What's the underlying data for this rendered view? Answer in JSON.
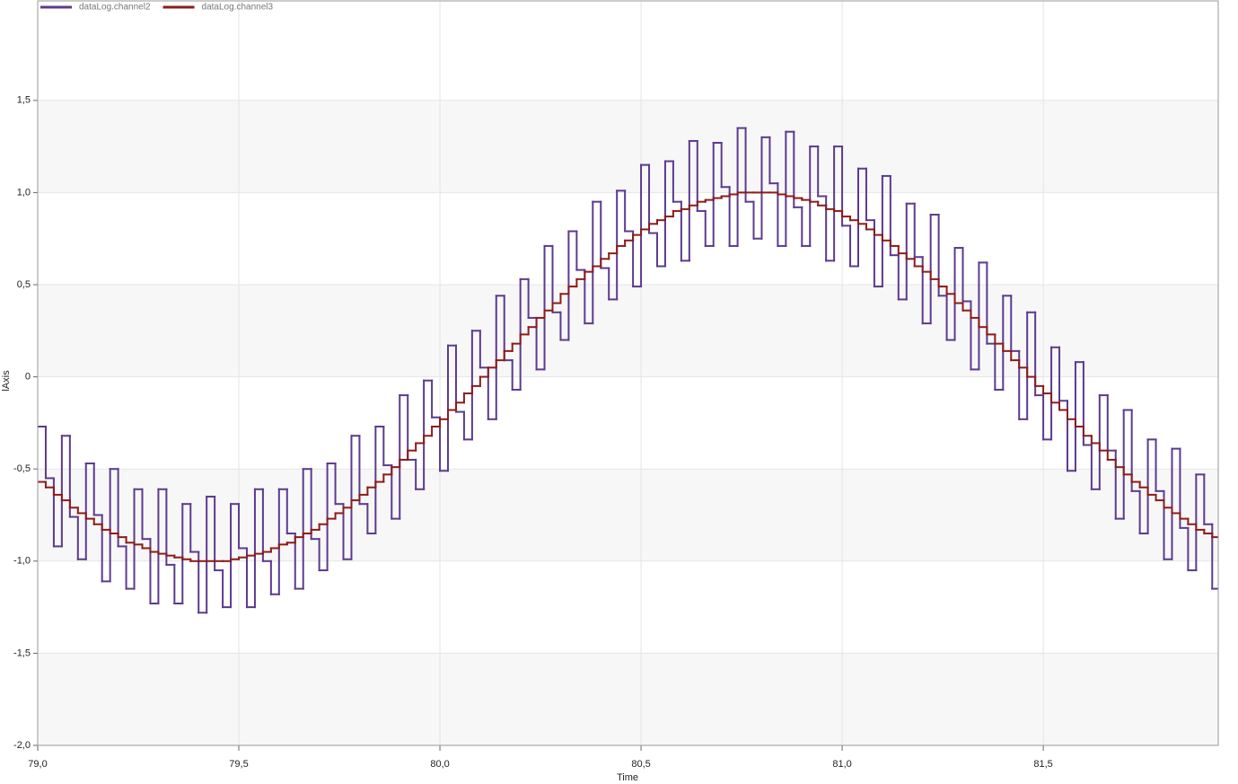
{
  "chart_data": {
    "type": "step-line",
    "x_label": "Time",
    "y_label": "lAxis",
    "xlim": [
      79.0,
      81.935
    ],
    "ylim": [
      -2.0,
      2.04
    ],
    "xticks": [
      {
        "value": 79.0,
        "label": "79,0"
      },
      {
        "value": 79.5,
        "label": "79,5"
      },
      {
        "value": 80.0,
        "label": "80,0"
      },
      {
        "value": 80.5,
        "label": "80,5"
      },
      {
        "value": 81.0,
        "label": "81,0"
      },
      {
        "value": 81.5,
        "label": "81,5"
      }
    ],
    "yticks": [
      {
        "value": -2.0,
        "label": "-2,0"
      },
      {
        "value": -1.5,
        "label": "-1,5"
      },
      {
        "value": -1.0,
        "label": "-1,0"
      },
      {
        "value": -0.5,
        "label": "-0,5"
      },
      0,
      {
        "value": 0.5,
        "label": "0,5"
      },
      {
        "value": 1.0,
        "label": "1,0"
      },
      {
        "value": 1.5,
        "label": "1,5"
      }
    ],
    "grid": true,
    "legend": "top-left",
    "x": [
      79.0,
      79.02,
      79.04,
      79.06,
      79.08,
      79.1,
      79.12,
      79.14,
      79.16,
      79.18,
      79.2,
      79.22,
      79.24,
      79.26,
      79.28,
      79.3,
      79.32,
      79.34,
      79.36,
      79.38,
      79.4,
      79.42,
      79.44,
      79.46,
      79.48,
      79.5,
      79.52,
      79.54,
      79.56,
      79.58,
      79.6,
      79.62,
      79.64,
      79.66,
      79.68,
      79.7,
      79.72,
      79.74,
      79.76,
      79.78,
      79.8,
      79.82,
      79.84,
      79.86,
      79.88,
      79.9,
      79.92,
      79.94,
      79.96,
      79.98,
      80.0,
      80.02,
      80.04,
      80.06,
      80.08,
      80.1,
      80.12,
      80.14,
      80.16,
      80.18,
      80.2,
      80.22,
      80.24,
      80.26,
      80.28,
      80.3,
      80.32,
      80.34,
      80.36,
      80.38,
      80.4,
      80.42,
      80.44,
      80.46,
      80.48,
      80.5,
      80.52,
      80.54,
      80.56,
      80.58,
      80.6,
      80.62,
      80.64,
      80.66,
      80.68,
      80.7,
      80.72,
      80.74,
      80.76,
      80.78,
      80.8,
      80.82,
      80.84,
      80.86,
      80.88,
      80.9,
      80.92,
      80.94,
      80.96,
      80.98,
      81.0,
      81.02,
      81.04,
      81.06,
      81.08,
      81.1,
      81.12,
      81.14,
      81.16,
      81.18,
      81.2,
      81.22,
      81.24,
      81.26,
      81.28,
      81.3,
      81.32,
      81.34,
      81.36,
      81.38,
      81.4,
      81.42,
      81.44,
      81.46,
      81.48,
      81.5,
      81.52,
      81.54,
      81.56,
      81.58,
      81.6,
      81.62,
      81.64,
      81.66,
      81.68,
      81.7,
      81.72,
      81.74,
      81.76,
      81.78,
      81.8,
      81.82,
      81.84,
      81.86,
      81.88,
      81.9,
      81.92
    ],
    "series": [
      {
        "name": "dataLog.channel2",
        "color": "#5c3a8e",
        "values": [
          -0.27,
          -0.55,
          -0.92,
          -0.32,
          -0.76,
          -0.99,
          -0.47,
          -0.75,
          -1.11,
          -0.5,
          -0.92,
          -1.15,
          -0.61,
          -0.88,
          -1.23,
          -0.61,
          -1.02,
          -1.23,
          -0.69,
          -0.95,
          -1.28,
          -0.65,
          -1.05,
          -1.25,
          -0.69,
          -0.93,
          -1.25,
          -0.61,
          -1.0,
          -1.18,
          -0.61,
          -0.85,
          -1.15,
          -0.5,
          -0.88,
          -1.05,
          -0.47,
          -0.69,
          -0.99,
          -0.32,
          -0.69,
          -0.85,
          -0.27,
          -0.48,
          -0.77,
          -0.1,
          -0.45,
          -0.61,
          -0.02,
          -0.22,
          -0.51,
          0.17,
          -0.19,
          -0.34,
          0.25,
          0.05,
          -0.23,
          0.44,
          0.09,
          -0.07,
          0.53,
          0.32,
          0.04,
          0.71,
          0.35,
          0.2,
          0.79,
          0.58,
          0.29,
          0.95,
          0.59,
          0.42,
          1.01,
          0.79,
          0.49,
          1.15,
          0.78,
          0.6,
          1.17,
          0.95,
          0.63,
          1.28,
          0.9,
          0.71,
          1.27,
          1.03,
          0.71,
          1.35,
          0.95,
          0.75,
          1.3,
          1.05,
          0.71,
          1.33,
          0.92,
          0.71,
          1.25,
          0.98,
          0.63,
          1.25,
          0.82,
          0.6,
          1.13,
          0.85,
          0.49,
          1.09,
          0.66,
          0.42,
          0.94,
          0.65,
          0.29,
          0.88,
          0.44,
          0.2,
          0.7,
          0.41,
          0.04,
          0.62,
          0.18,
          -0.07,
          0.44,
          0.14,
          -0.23,
          0.35,
          -0.1,
          -0.34,
          0.16,
          -0.13,
          -0.51,
          0.08,
          -0.37,
          -0.61,
          -0.1,
          -0.4,
          -0.77,
          -0.18,
          -0.62,
          -0.85,
          -0.34,
          -0.62,
          -0.99,
          -0.39,
          -0.82,
          -1.05,
          -0.53,
          -0.8,
          -1.15
        ]
      },
      {
        "name": "dataLog.channel3",
        "color": "#8b1c1c",
        "values": [
          -0.57,
          -0.6,
          -0.64,
          -0.67,
          -0.71,
          -0.74,
          -0.77,
          -0.8,
          -0.83,
          -0.85,
          -0.87,
          -0.9,
          -0.91,
          -0.93,
          -0.95,
          -0.96,
          -0.97,
          -0.98,
          -0.99,
          -1.0,
          -1.0,
          -1.0,
          -1.0,
          -1.0,
          -0.99,
          -0.98,
          -0.97,
          -0.96,
          -0.95,
          -0.93,
          -0.91,
          -0.9,
          -0.87,
          -0.85,
          -0.83,
          -0.8,
          -0.77,
          -0.74,
          -0.71,
          -0.67,
          -0.64,
          -0.6,
          -0.57,
          -0.53,
          -0.49,
          -0.45,
          -0.4,
          -0.36,
          -0.32,
          -0.27,
          -0.23,
          -0.18,
          -0.14,
          -0.09,
          -0.05,
          0.0,
          0.05,
          0.09,
          0.14,
          0.18,
          0.23,
          0.27,
          0.32,
          0.36,
          0.4,
          0.45,
          0.49,
          0.53,
          0.57,
          0.6,
          0.64,
          0.67,
          0.71,
          0.74,
          0.77,
          0.8,
          0.83,
          0.85,
          0.87,
          0.9,
          0.91,
          0.93,
          0.95,
          0.96,
          0.97,
          0.98,
          0.99,
          1.0,
          1.0,
          1.0,
          1.0,
          1.0,
          0.99,
          0.98,
          0.97,
          0.96,
          0.95,
          0.93,
          0.91,
          0.9,
          0.87,
          0.85,
          0.83,
          0.8,
          0.77,
          0.74,
          0.71,
          0.67,
          0.64,
          0.6,
          0.57,
          0.53,
          0.49,
          0.45,
          0.4,
          0.36,
          0.32,
          0.27,
          0.23,
          0.18,
          0.14,
          0.09,
          0.05,
          0.0,
          -0.05,
          -0.09,
          -0.14,
          -0.18,
          -0.23,
          -0.27,
          -0.32,
          -0.36,
          -0.4,
          -0.45,
          -0.49,
          -0.53,
          -0.57,
          -0.6,
          -0.64,
          -0.67,
          -0.71,
          -0.74,
          -0.77,
          -0.8,
          -0.83,
          -0.85,
          -0.87
        ]
      }
    ]
  }
}
